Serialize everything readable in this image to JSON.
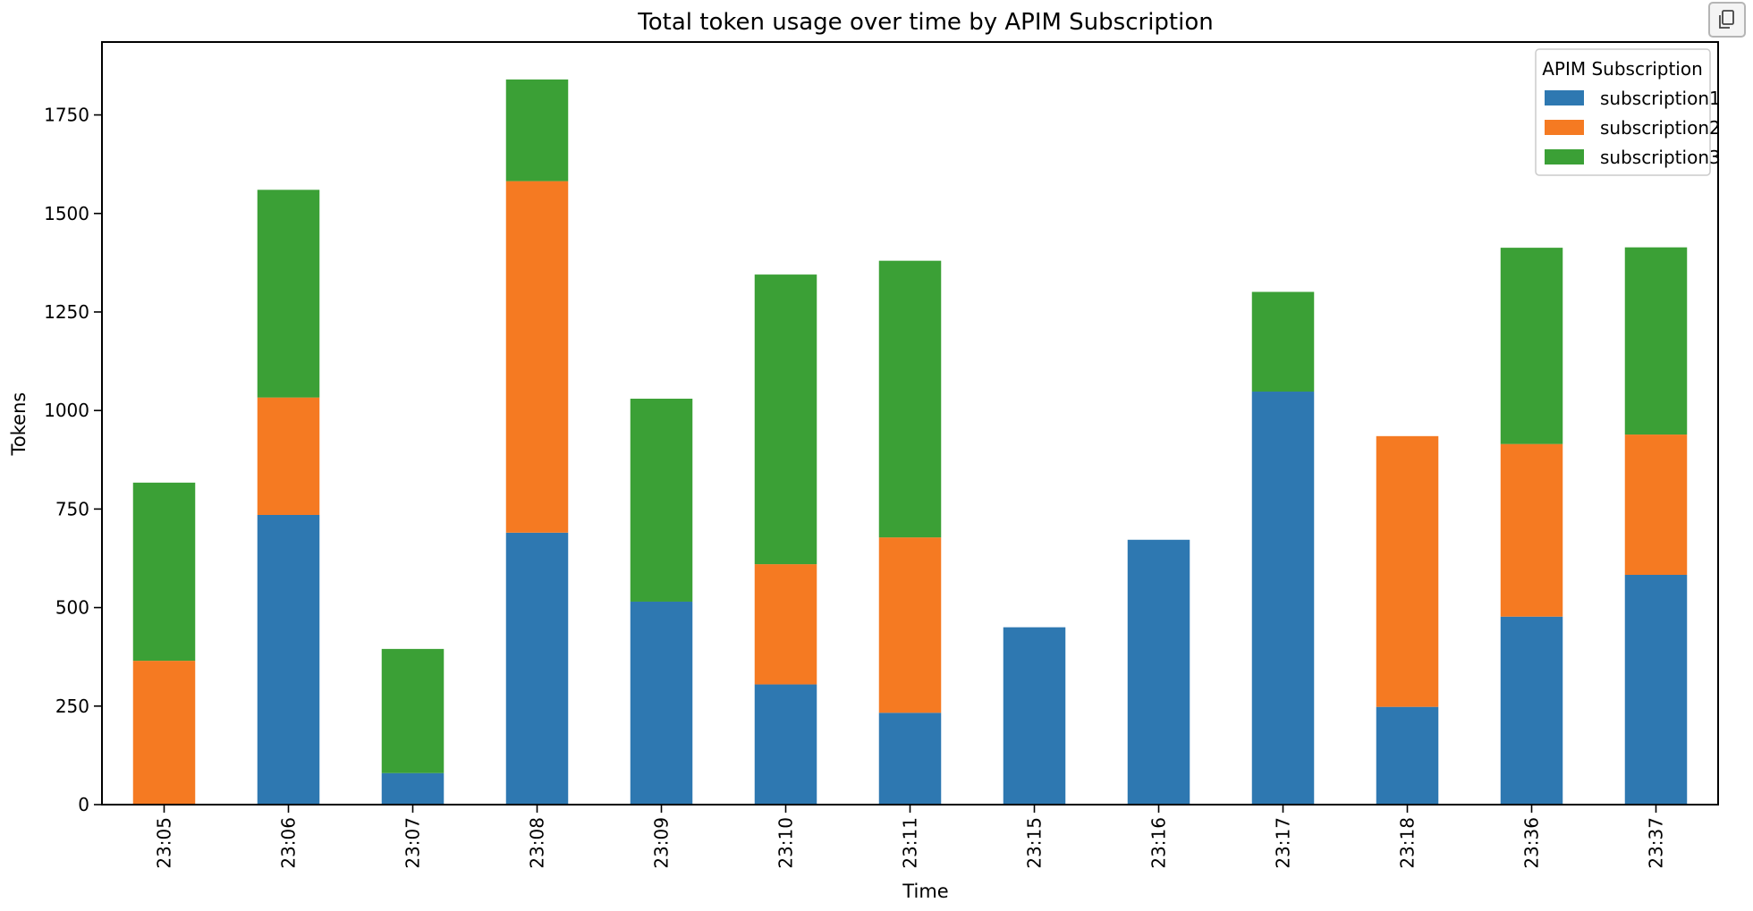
{
  "toolbar": {
    "copy_icon": "copy-icon"
  },
  "chart_data": {
    "type": "bar",
    "stacked": true,
    "title": "Total token usage over time by APIM Subscription",
    "xlabel": "Time",
    "ylabel": "Tokens",
    "ylim": [
      0,
      1935
    ],
    "yticks": [
      0,
      250,
      500,
      750,
      1000,
      1250,
      1500,
      1750
    ],
    "grid": false,
    "legend_title": "APIM Subscription",
    "legend_position": "top-right",
    "categories": [
      "23:05",
      "23:06",
      "23:07",
      "23:08",
      "23:09",
      "23:10",
      "23:11",
      "23:15",
      "23:16",
      "23:17",
      "23:18",
      "23:36",
      "23:37"
    ],
    "series": [
      {
        "name": "subscription1",
        "color": "#2e78b1",
        "values": [
          0,
          735,
          80,
          690,
          515,
          305,
          233,
          450,
          672,
          1048,
          248,
          477,
          583
        ]
      },
      {
        "name": "subscription2",
        "color": "#f57a22",
        "values": [
          365,
          298,
          0,
          892,
          0,
          305,
          445,
          0,
          0,
          0,
          687,
          438,
          356
        ]
      },
      {
        "name": "subscription3",
        "color": "#3ba036",
        "values": [
          452,
          527,
          315,
          258,
          515,
          735,
          702,
          0,
          0,
          253,
          0,
          498,
          475
        ]
      }
    ]
  }
}
